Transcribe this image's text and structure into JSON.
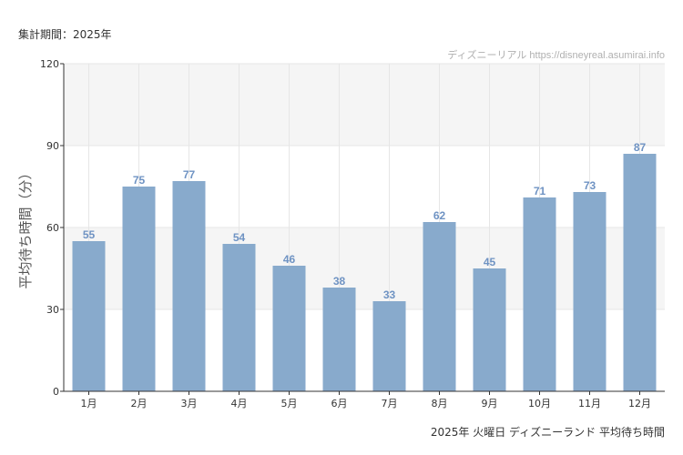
{
  "header": {
    "period": "集計期間：2025年",
    "source": "ディズニーリアル https://disneyreal.asumirai.info"
  },
  "footer": {
    "caption": "2025年 火曜日 ディズニーランド 平均待ち時間"
  },
  "colors": {
    "bar": "#88aacc",
    "label": "#6f93c3",
    "band": "#f5f5f5",
    "grid": "#e6e6e6"
  },
  "chart_data": {
    "type": "bar",
    "ylabel": "平均待ち時間（分）",
    "ylim": [
      0,
      120
    ],
    "yticks": [
      0,
      30,
      60,
      90,
      120
    ],
    "categories": [
      "1月",
      "2月",
      "3月",
      "4月",
      "5月",
      "6月",
      "7月",
      "8月",
      "9月",
      "10月",
      "11月",
      "12月"
    ],
    "values": [
      55,
      75,
      77,
      54,
      46,
      38,
      33,
      62,
      45,
      71,
      73,
      87
    ],
    "grid": true,
    "legend": "none"
  }
}
